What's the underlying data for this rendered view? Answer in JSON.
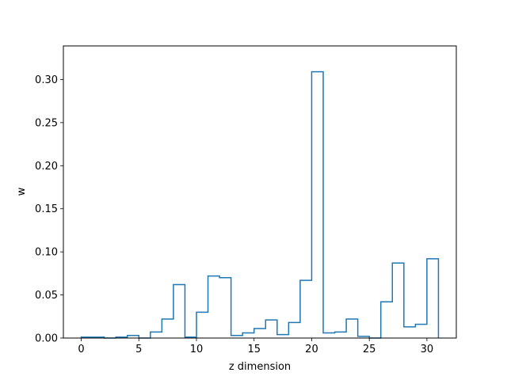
{
  "chart_data": {
    "type": "step",
    "xlabel": "z dimension",
    "ylabel": "w",
    "xlim": [
      -1.55,
      32.55
    ],
    "ylim": [
      0,
      0.339
    ],
    "xticks": [
      0,
      5,
      10,
      15,
      20,
      25,
      30
    ],
    "yticks": [
      0.0,
      0.05,
      0.1,
      0.15,
      0.2,
      0.25,
      0.3
    ],
    "ytick_labels": [
      "0.00",
      "0.05",
      "0.10",
      "0.15",
      "0.20",
      "0.25",
      "0.30"
    ],
    "grid": false,
    "series_color": "#1f77b4",
    "bin_edges": [
      0,
      1,
      2,
      3,
      4,
      5,
      6,
      7,
      8,
      9,
      10,
      11,
      12,
      13,
      14,
      15,
      16,
      17,
      18,
      19,
      20,
      21,
      22,
      23,
      24,
      25,
      26,
      27,
      28,
      29,
      30,
      31
    ],
    "values": [
      0.001,
      0.001,
      0.0,
      0.001,
      0.003,
      0.0,
      0.007,
      0.022,
      0.062,
      0.001,
      0.03,
      0.072,
      0.07,
      0.003,
      0.006,
      0.011,
      0.021,
      0.004,
      0.018,
      0.067,
      0.309,
      0.006,
      0.007,
      0.022,
      0.002,
      0.0,
      0.042,
      0.087,
      0.013,
      0.016,
      0.092
    ]
  }
}
